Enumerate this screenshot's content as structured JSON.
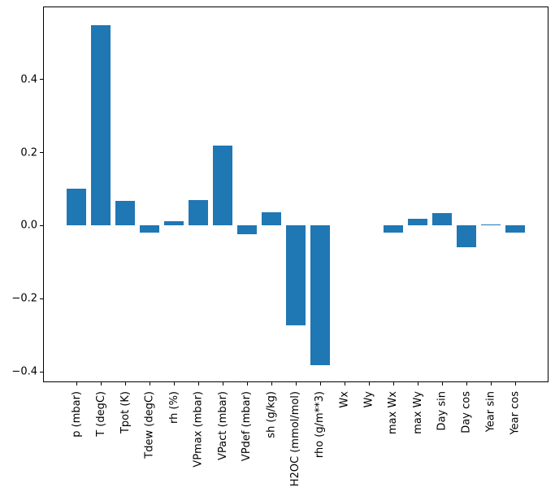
{
  "chart_data": {
    "type": "bar",
    "title": "",
    "xlabel": "",
    "ylabel": "",
    "bar_color": "#1f77b4",
    "grid": false,
    "legend": null,
    "bar_width": 0.8,
    "xlim": [
      -1.34,
      19.34
    ],
    "ylim": [
      -0.426,
      0.597
    ],
    "categories": [
      "p (mbar)",
      "T (degC)",
      "Tpot (K)",
      "Tdew (degC)",
      "rh (%)",
      "VPmax (mbar)",
      "VPact (mbar)",
      "VPdef (mbar)",
      "sh (g/kg)",
      "H2OC (mmol/mol)",
      "rho (g/m**3)",
      "Wx",
      "Wy",
      "max Wx",
      "max Wy",
      "Day sin",
      "Day cos",
      "Year sin",
      "Year cos"
    ],
    "values": [
      0.102,
      0.549,
      0.067,
      -0.019,
      0.013,
      0.069,
      0.22,
      -0.023,
      0.036,
      -0.273,
      -0.382,
      0.0,
      0.0,
      -0.02,
      0.018,
      0.035,
      -0.059,
      0.004,
      -0.018
    ],
    "yticks": [
      {
        "value": 0.4,
        "label": "0.4"
      },
      {
        "value": 0.2,
        "label": "0.2"
      },
      {
        "value": 0.0,
        "label": "0.0"
      },
      {
        "value": -0.2,
        "label": "−0.2"
      },
      {
        "value": -0.4,
        "label": "−0.4"
      }
    ]
  }
}
